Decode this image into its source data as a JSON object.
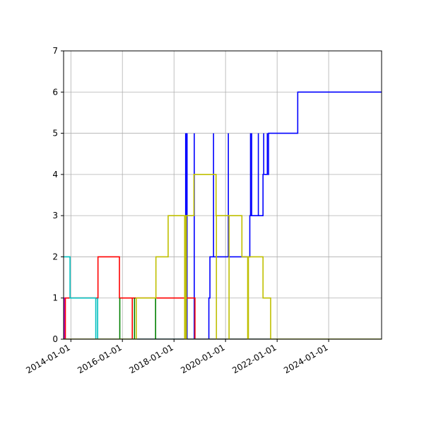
{
  "chart_data": {
    "type": "line",
    "step": true,
    "grid": true,
    "xaxis": {
      "kind": "date",
      "range": [
        "2013-09-20",
        "2026-01-20"
      ],
      "ticks": [
        "2014-01-01",
        "2016-01-01",
        "2018-01-01",
        "2020-01-01",
        "2022-01-01",
        "2024-01-01"
      ],
      "tick_labels": [
        "2014-01-01",
        "2016-01-01",
        "2018-01-01",
        "2020-01-01",
        "2022-01-01",
        "2024-01-01"
      ]
    },
    "yaxis": {
      "range": [
        0,
        7
      ],
      "ticks": [
        0,
        1,
        2,
        3,
        4,
        5,
        6,
        7
      ],
      "tick_labels": [
        "0",
        "1",
        "2",
        "3",
        "4",
        "5",
        "6",
        "7"
      ]
    },
    "series": [
      {
        "color": "#0000ff",
        "points": [
          [
            "2013-09-20",
            0
          ],
          [
            "2019-05-10",
            0
          ],
          [
            "2019-05-10",
            1
          ],
          [
            "2019-05-25",
            1
          ],
          [
            "2019-05-25",
            2
          ],
          [
            "2020-12-10",
            2
          ],
          [
            "2020-12-10",
            3
          ],
          [
            "2021-06-15",
            3
          ],
          [
            "2021-06-15",
            4
          ],
          [
            "2021-09-01",
            4
          ],
          [
            "2021-09-01",
            5
          ],
          [
            "2022-10-20",
            5
          ],
          [
            "2022-10-20",
            6
          ],
          [
            "2026-01-20",
            6
          ]
        ],
        "spikes": [
          [
            "2018-06-15",
            5
          ],
          [
            "2018-06-20",
            5
          ],
          [
            "2018-06-25",
            5
          ],
          [
            "2018-07-05",
            5
          ],
          [
            "2018-10-15",
            5
          ],
          [
            "2019-07-15",
            5
          ],
          [
            "2020-02-10",
            5
          ],
          [
            "2020-12-20",
            5
          ],
          [
            "2021-01-05",
            5
          ],
          [
            "2021-04-10",
            5
          ],
          [
            "2021-06-25",
            5
          ],
          [
            "2021-08-15",
            5
          ]
        ]
      },
      {
        "color": "#ff0000",
        "points": [
          [
            "2013-09-20",
            0
          ],
          [
            "2013-10-15",
            0
          ],
          [
            "2013-10-15",
            1
          ],
          [
            "2015-01-20",
            1
          ],
          [
            "2015-01-20",
            2
          ],
          [
            "2015-11-20",
            2
          ],
          [
            "2015-11-20",
            1
          ],
          [
            "2018-10-25",
            1
          ],
          [
            "2018-10-25",
            0
          ],
          [
            "2026-01-20",
            0
          ]
        ],
        "spikes": [
          [
            "2016-05-20",
            0
          ]
        ]
      },
      {
        "color": "#00bfbf",
        "points": [
          [
            "2013-09-20",
            2
          ],
          [
            "2013-12-20",
            2
          ],
          [
            "2013-12-20",
            1
          ],
          [
            "2014-12-20",
            1
          ],
          [
            "2014-12-20",
            0
          ],
          [
            "2026-01-20",
            0
          ]
        ],
        "spikes": [
          [
            "2015-01-15",
            1
          ]
        ]
      },
      {
        "color": "#bf00bf",
        "points": [
          [
            "2013-09-20",
            1
          ],
          [
            "2013-10-01",
            1
          ],
          [
            "2013-10-01",
            0
          ],
          [
            "2026-01-20",
            0
          ]
        ],
        "spikes": []
      },
      {
        "color": "#008000",
        "points": [
          [
            "2013-09-20",
            0
          ],
          [
            "2026-01-20",
            0
          ]
        ],
        "spikes": [
          [
            "2015-11-25",
            1
          ],
          [
            "2016-06-20",
            1
          ],
          [
            "2017-04-15",
            1
          ]
        ]
      },
      {
        "color": "#bfbf00",
        "points": [
          [
            "2013-09-20",
            0
          ],
          [
            "2016-07-15",
            0
          ],
          [
            "2016-07-15",
            1
          ],
          [
            "2017-04-20",
            1
          ],
          [
            "2017-04-20",
            2
          ],
          [
            "2017-10-10",
            2
          ],
          [
            "2017-10-10",
            3
          ],
          [
            "2018-10-10",
            3
          ],
          [
            "2018-10-10",
            4
          ],
          [
            "2019-08-20",
            4
          ],
          [
            "2019-08-20",
            3
          ],
          [
            "2020-08-20",
            3
          ],
          [
            "2020-08-20",
            2
          ],
          [
            "2021-06-15",
            2
          ],
          [
            "2021-06-15",
            1
          ],
          [
            "2021-10-01",
            1
          ],
          [
            "2021-10-01",
            0
          ],
          [
            "2026-01-20",
            0
          ]
        ],
        "spikes": [
          [
            "2018-06-01",
            0
          ],
          [
            "2018-06-08",
            0
          ],
          [
            "2018-06-15",
            0
          ],
          [
            "2018-06-25",
            0
          ],
          [
            "2019-08-25",
            0
          ],
          [
            "2020-02-20",
            0
          ],
          [
            "2020-11-10",
            0
          ],
          [
            "2020-11-20",
            0
          ]
        ]
      }
    ]
  }
}
